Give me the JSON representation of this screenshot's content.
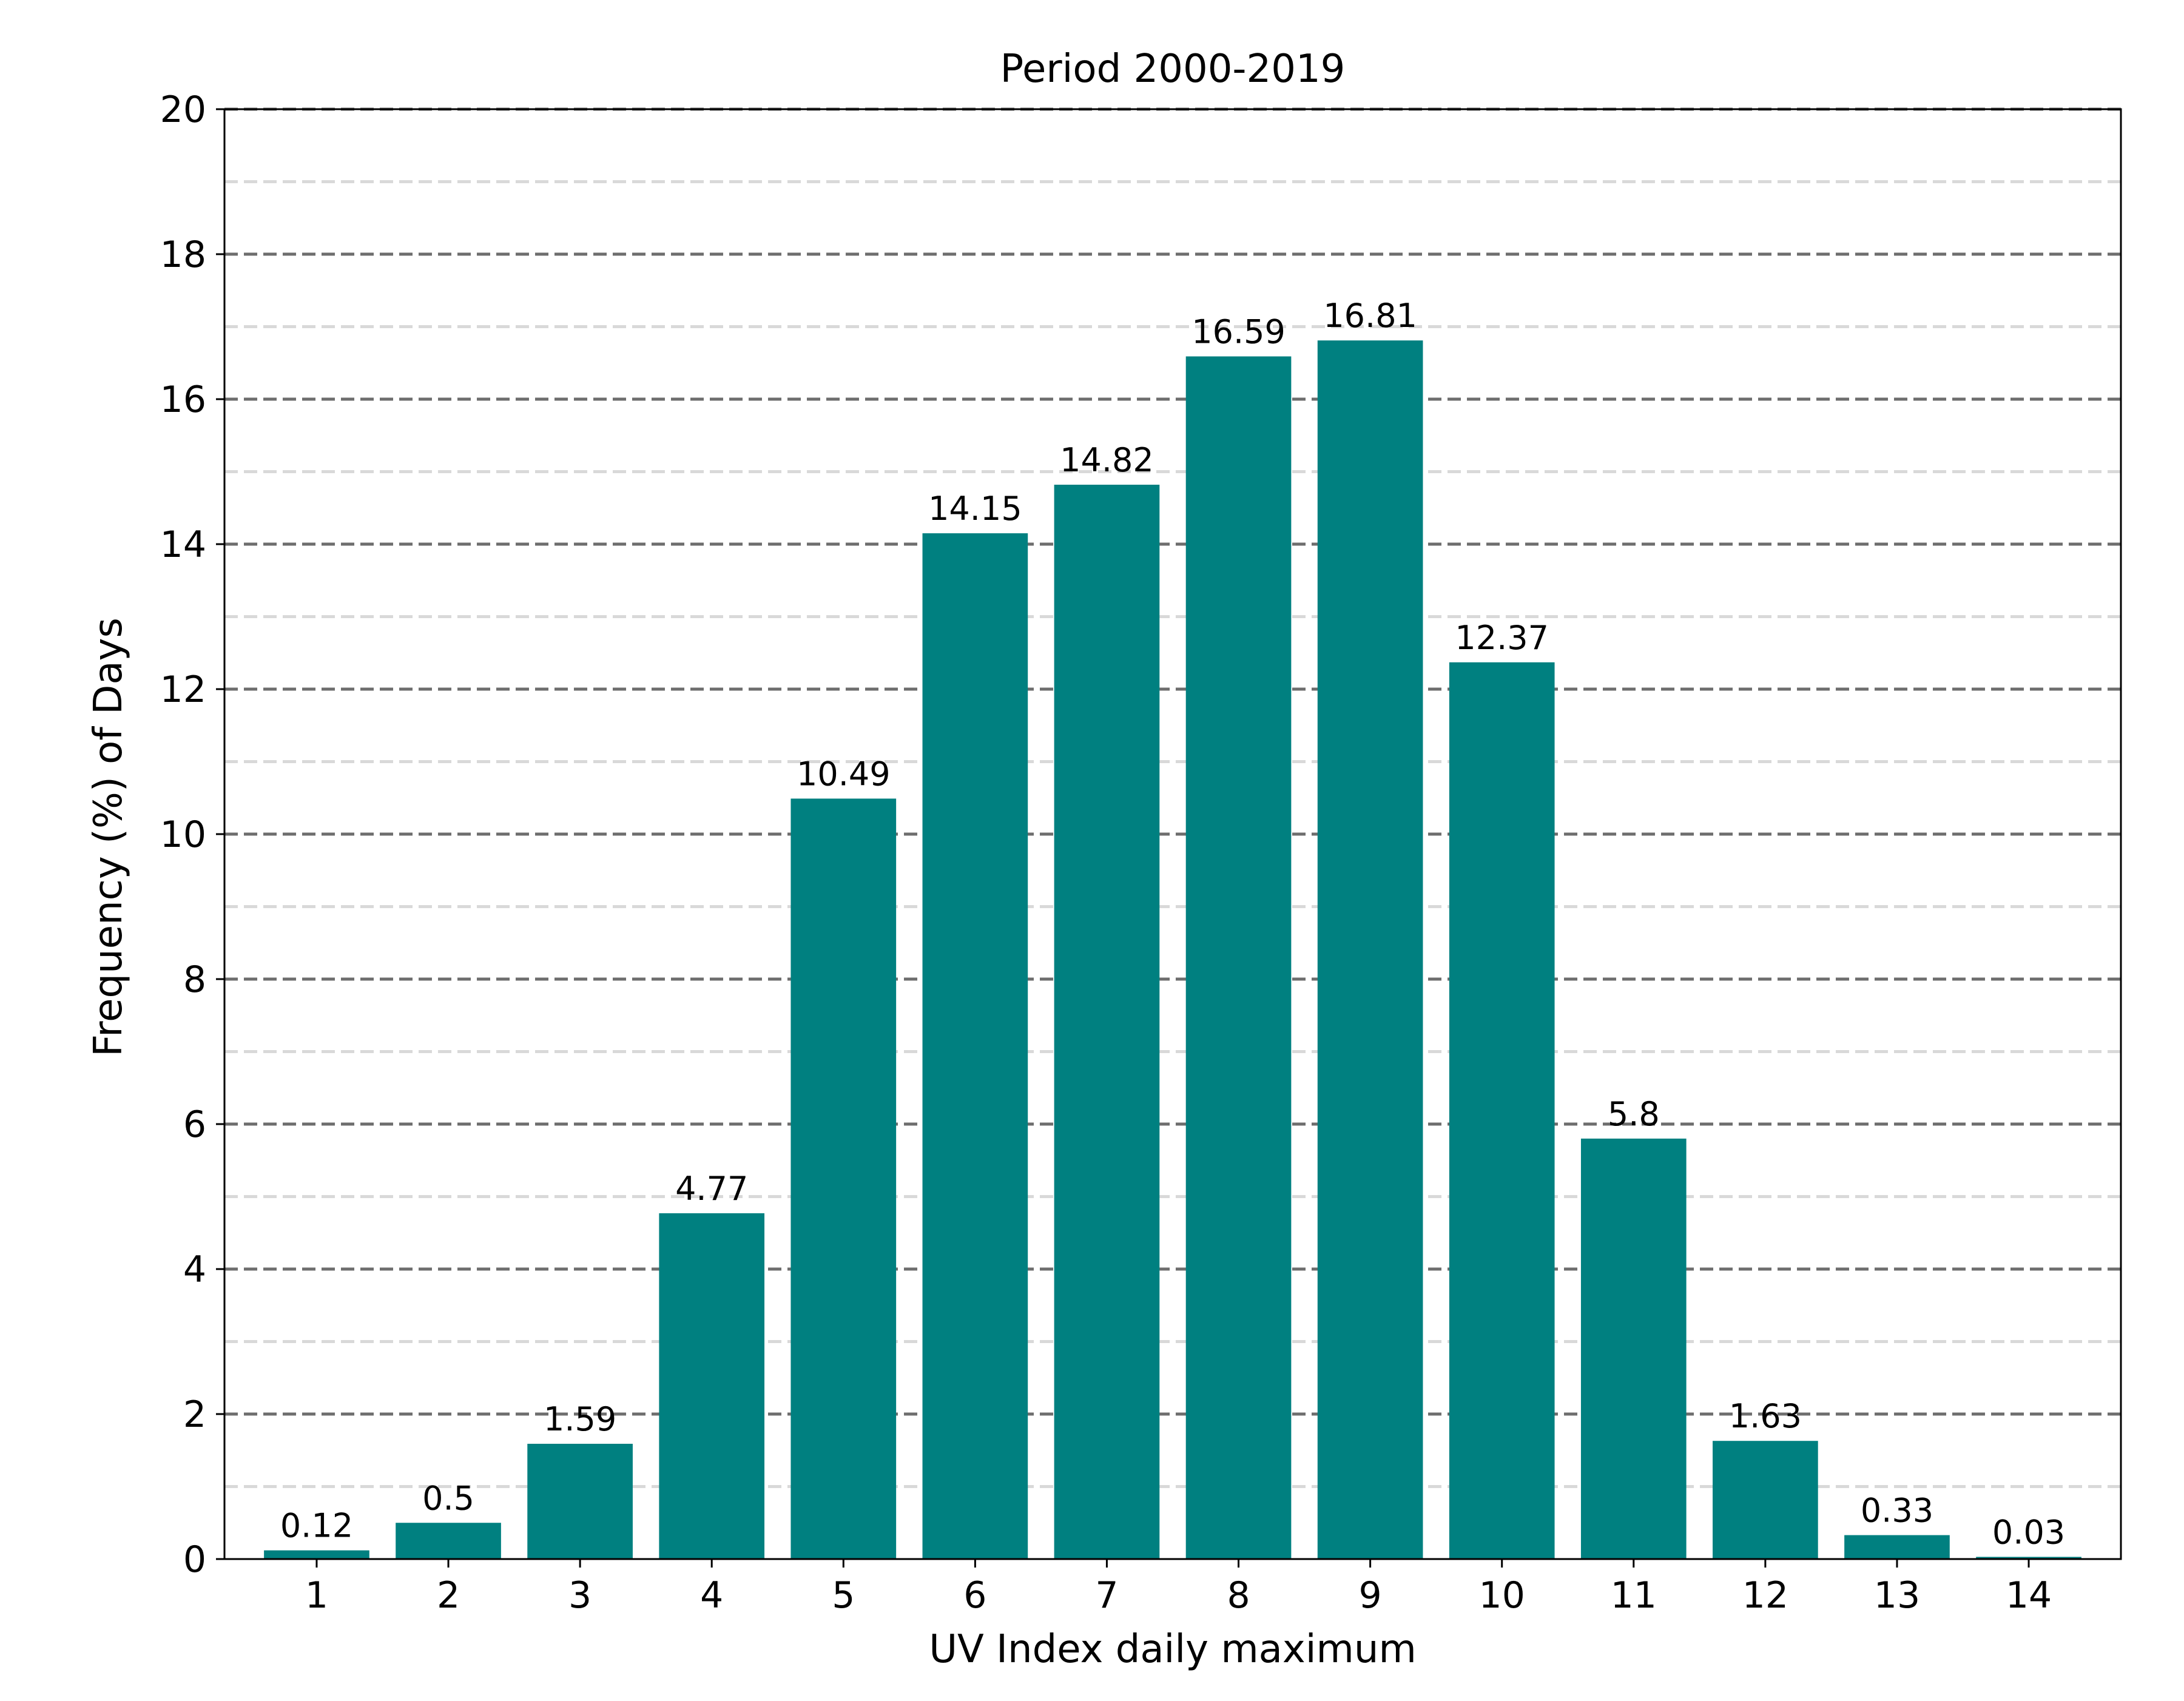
{
  "chart_data": {
    "type": "bar",
    "title": "Period 2000-2019",
    "xlabel": "UV Index daily maximum",
    "ylabel": "Frequency (%) of Days",
    "categories": [
      "1",
      "2",
      "3",
      "4",
      "5",
      "6",
      "7",
      "8",
      "9",
      "10",
      "11",
      "12",
      "13",
      "14"
    ],
    "values": [
      0.12,
      0.5,
      1.59,
      4.77,
      10.49,
      14.15,
      14.82,
      16.59,
      16.81,
      12.37,
      5.8,
      1.63,
      0.33,
      0.03
    ],
    "data_labels": [
      "0.12",
      "0.5",
      "1.59",
      "4.77",
      "10.49",
      "14.15",
      "14.82",
      "16.59",
      "16.81",
      "12.37",
      "5.8",
      "1.63",
      "0.33",
      "0.03"
    ],
    "ylim": [
      0,
      20
    ],
    "yticks": [
      0,
      2,
      4,
      6,
      8,
      10,
      12,
      14,
      16,
      18,
      20
    ],
    "grid": {
      "major": "dashed dark gray at every 2",
      "minor": "dashed light gray at odd values"
    },
    "legend": "none",
    "colors": {
      "bar": "#008080",
      "major_grid": "#6e6e6e",
      "minor_grid": "#d9d9d9",
      "axis": "#000000"
    }
  }
}
